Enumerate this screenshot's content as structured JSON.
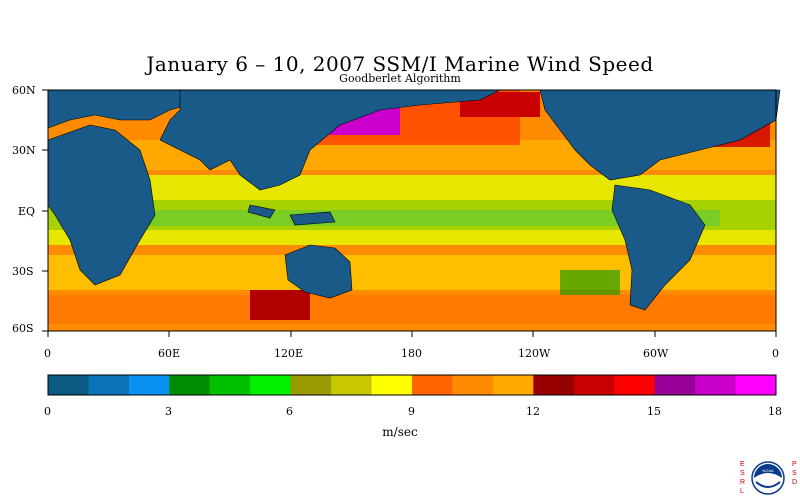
{
  "title": "January 6 – 10, 2007 SSM/I Marine Wind Speed",
  "subtitle": "Goodberlet Algorithm",
  "lat_labels": [
    "60N",
    "30N",
    "EQ",
    "30S",
    "60S"
  ],
  "lon_labels": [
    "0",
    "60E",
    "120E",
    "180",
    "120W",
    "60W",
    "0"
  ],
  "colorbar": {
    "units": "m/sec",
    "tick_labels": [
      "0",
      "3",
      "6",
      "9",
      "12",
      "15",
      "18"
    ],
    "colors": [
      "#0a5a82",
      "#0a72b8",
      "#0a90f0",
      "#008c00",
      "#00c000",
      "#00f000",
      "#999900",
      "#c8c800",
      "#ffff00",
      "#ff6400",
      "#ff8c00",
      "#ffa800",
      "#960000",
      "#c80000",
      "#ff0000",
      "#960096",
      "#c800c8",
      "#ff00ff"
    ]
  },
  "logo": {
    "left_text": "ESRL",
    "right_text": "PSD",
    "center_text": "NOAA"
  }
}
